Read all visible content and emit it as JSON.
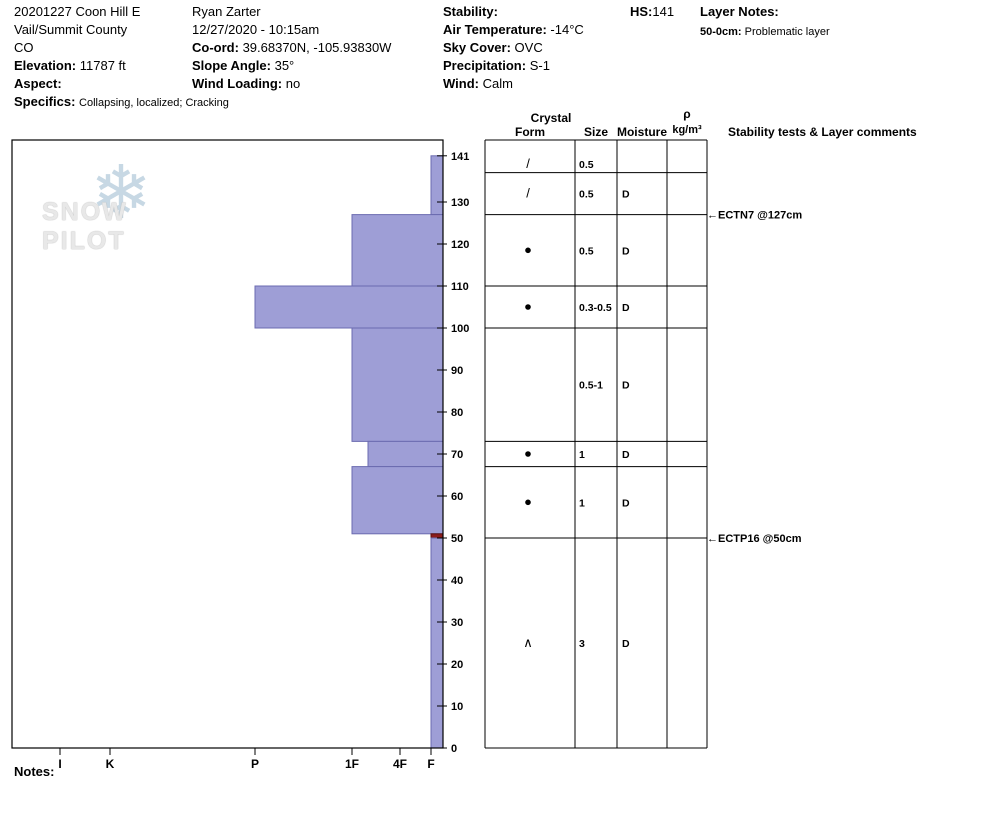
{
  "header": {
    "col1": {
      "title": "20201227 Coon Hill E",
      "region": "Vail/Summit County",
      "state": "CO",
      "elevation": {
        "label": "Elevation:",
        "value": "11787 ft"
      },
      "aspect": {
        "label": "Aspect:",
        "value": ""
      },
      "specifics": {
        "label": "Specifics:",
        "value": "Collapsing, localized;  Cracking"
      }
    },
    "col2": {
      "observer": "Ryan Zarter",
      "datetime": "12/27/2020 - 10:15am",
      "coord": {
        "label": "Co-ord:",
        "value": "39.68370N, -105.93830W"
      },
      "slope_angle": {
        "label": "Slope Angle:",
        "value": "35°"
      },
      "wind_loading": {
        "label": "Wind Loading:",
        "value": "no"
      }
    },
    "col3": {
      "stability": {
        "label": "Stability:",
        "value": ""
      },
      "air_temp": {
        "label": "Air Temperature:",
        "value": "-14°C"
      },
      "sky_cover": {
        "label": "Sky Cover:",
        "value": "OVC"
      },
      "precipitation": {
        "label": "Precipitation:",
        "value": "S-1"
      },
      "wind": {
        "label": "Wind:",
        "value": "Calm"
      }
    },
    "col4": {
      "hs": {
        "label": "HS:",
        "value": "141"
      }
    },
    "col5": {
      "layer_notes_label": "Layer Notes:",
      "notes": [
        {
          "range": "50-0cm:",
          "text": "Problematic layer"
        }
      ]
    }
  },
  "watermark": {
    "text": "SNOW PILOT",
    "icon": "snowflake"
  },
  "notes_label": "Notes:",
  "chart_data": {
    "type": "bar",
    "title": "Snow pit hardness profile",
    "hs_cm": 141,
    "depth_axis": {
      "side": "right",
      "units": "cm",
      "ticks": [
        141,
        130,
        120,
        110,
        100,
        90,
        80,
        70,
        60,
        50,
        40,
        30,
        20,
        10,
        0
      ]
    },
    "hardness_axis": {
      "categories": [
        "I",
        "K",
        "P",
        "1F",
        "4F",
        "F"
      ]
    },
    "hardness_layers": [
      {
        "top_cm": 141,
        "bottom_cm": 127,
        "hardness": "F",
        "problematic": false
      },
      {
        "top_cm": 127,
        "bottom_cm": 110,
        "hardness": "1F",
        "problematic": false
      },
      {
        "top_cm": 110,
        "bottom_cm": 100,
        "hardness": "P",
        "problematic": false
      },
      {
        "top_cm": 100,
        "bottom_cm": 73,
        "hardness": "1F",
        "problematic": false
      },
      {
        "top_cm": 73,
        "bottom_cm": 67,
        "hardness": "1F-",
        "problematic": false
      },
      {
        "top_cm": 67,
        "bottom_cm": 51,
        "hardness": "1F",
        "problematic": false
      },
      {
        "top_cm": 51,
        "bottom_cm": 50,
        "hardness": "F",
        "problematic": true
      },
      {
        "top_cm": 50,
        "bottom_cm": 0,
        "hardness": "F",
        "problematic": false
      }
    ],
    "layers_table": {
      "headers": {
        "crystal": "Crystal",
        "form": "Form",
        "size": "Size",
        "moisture": "Moisture",
        "rho": "ρ",
        "rho_units": "kg/m³",
        "comments": "Stability tests & Layer comments"
      },
      "rows": [
        {
          "top_cm": 141,
          "bottom_cm": 137,
          "form_symbol": "/",
          "form_name": "decomposing-fragments",
          "size_mm": "0.5",
          "moisture": "",
          "density": ""
        },
        {
          "top_cm": 137,
          "bottom_cm": 127,
          "form_symbol": "/",
          "form_name": "decomposing-fragments",
          "size_mm": "0.5",
          "moisture": "D",
          "density": ""
        },
        {
          "top_cm": 127,
          "bottom_cm": 110,
          "form_symbol": "●",
          "form_name": "rounds",
          "size_mm": "0.5",
          "moisture": "D",
          "density": ""
        },
        {
          "top_cm": 110,
          "bottom_cm": 100,
          "form_symbol": "●",
          "form_name": "rounds",
          "size_mm": "0.3-0.5",
          "moisture": "D",
          "density": ""
        },
        {
          "top_cm": 100,
          "bottom_cm": 73,
          "form_symbol": "",
          "form_name": "",
          "size_mm": "0.5-1",
          "moisture": "D",
          "density": ""
        },
        {
          "top_cm": 73,
          "bottom_cm": 67,
          "form_symbol": "●",
          "form_name": "rounds",
          "size_mm": "1",
          "moisture": "D",
          "density": ""
        },
        {
          "top_cm": 67,
          "bottom_cm": 50,
          "form_symbol": "●",
          "form_name": "rounds",
          "size_mm": "1",
          "moisture": "D",
          "density": ""
        },
        {
          "top_cm": 50,
          "bottom_cm": 0,
          "form_symbol": "∧",
          "form_name": "depth-hoar",
          "size_mm": "3",
          "moisture": "D",
          "density": ""
        }
      ]
    },
    "stability_tests": [
      {
        "depth_cm": 127,
        "label": "ECTN7 @127cm"
      },
      {
        "depth_cm": 50,
        "label": "ECTP16 @50cm"
      }
    ],
    "colors": {
      "bar_fill": "#9e9ed6",
      "bar_stroke": "#6b6bb0",
      "problematic_fill": "#8b1c1c",
      "problematic_stroke": "#5a0f0f",
      "axis": "#000000",
      "watermark_flake": "#c7d8e4"
    }
  }
}
